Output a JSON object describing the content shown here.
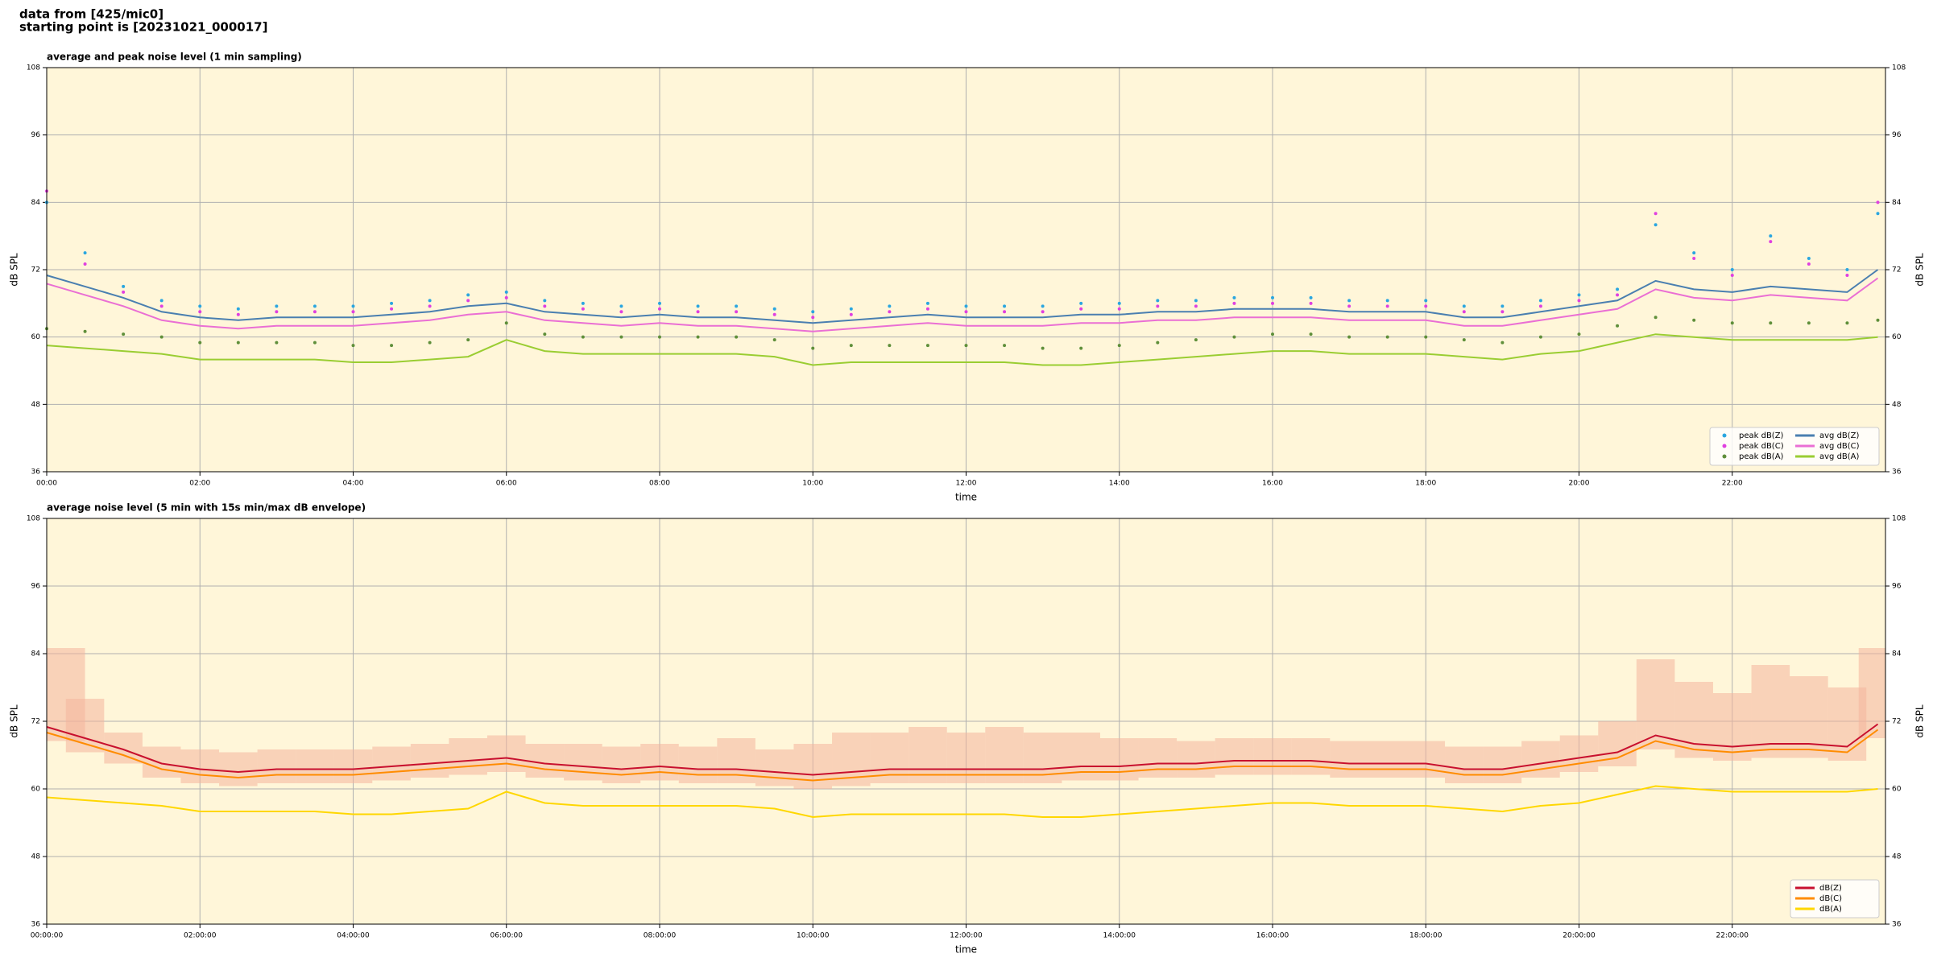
{
  "header": [
    "data from [425/mic0]",
    "starting point is [20231021_000017]"
  ],
  "chart_data": [
    {
      "type": "line",
      "title": "average and peak noise level (1 min sampling)",
      "xlabel": "time",
      "ylabel": "dB SPL",
      "background": "#fff6d9",
      "grid": true,
      "legend": "lower right",
      "legend_columns": 2,
      "xlim": [
        0,
        24
      ],
      "ylim": [
        36,
        108
      ],
      "yticks": [
        36,
        48,
        60,
        72,
        84,
        96,
        108
      ],
      "xticks": [
        {
          "value": 0,
          "label": "00:00"
        },
        {
          "value": 2,
          "label": "02:00"
        },
        {
          "value": 4,
          "label": "04:00"
        },
        {
          "value": 6,
          "label": "06:00"
        },
        {
          "value": 8,
          "label": "08:00"
        },
        {
          "value": 10,
          "label": "10:00"
        },
        {
          "value": 12,
          "label": "12:00"
        },
        {
          "value": 14,
          "label": "14:00"
        },
        {
          "value": 16,
          "label": "16:00"
        },
        {
          "value": 18,
          "label": "18:00"
        },
        {
          "value": 20,
          "label": "20:00"
        },
        {
          "value": 22,
          "label": "22:00"
        }
      ],
      "x": [
        0,
        0.5,
        1,
        1.5,
        2,
        2.5,
        3,
        3.5,
        4,
        4.5,
        5,
        5.5,
        6,
        6.5,
        7,
        7.5,
        8,
        8.5,
        9,
        9.5,
        10,
        10.5,
        11,
        11.5,
        12,
        12.5,
        13,
        13.5,
        14,
        14.5,
        15,
        15.5,
        16,
        16.5,
        17,
        17.5,
        18,
        18.5,
        19,
        19.5,
        20,
        20.5,
        21,
        21.5,
        22,
        22.5,
        23,
        23.5,
        23.9
      ],
      "series": [
        {
          "name": "peak dB(Z)",
          "color": "#2aa6e0",
          "style": "markers",
          "values": [
            84,
            75,
            69,
            66.5,
            65.5,
            65,
            65.5,
            65.5,
            65.5,
            66,
            66.5,
            67.5,
            68,
            66.5,
            66,
            65.5,
            66,
            65.5,
            65.5,
            65,
            64.5,
            65,
            65.5,
            66,
            65.5,
            65.5,
            65.5,
            66,
            66,
            66.5,
            66.5,
            67,
            67,
            67,
            66.5,
            66.5,
            66.5,
            65.5,
            65.5,
            66.5,
            67.5,
            68.5,
            80,
            75,
            72,
            78,
            74,
            72,
            82
          ]
        },
        {
          "name": "peak dB(C)",
          "color": "#e040e0",
          "style": "markers",
          "values": [
            86,
            73,
            68,
            65.5,
            64.5,
            64,
            64.5,
            64.5,
            64.5,
            65,
            65.5,
            66.5,
            67,
            65.5,
            65,
            64.5,
            65,
            64.5,
            64.5,
            64,
            63.5,
            64,
            64.5,
            65,
            64.5,
            64.5,
            64.5,
            65,
            65,
            65.5,
            65.5,
            66,
            66,
            66,
            65.5,
            65.5,
            65.5,
            64.5,
            64.5,
            65.5,
            66.5,
            67.5,
            82,
            74,
            71,
            77,
            73,
            71,
            84
          ]
        },
        {
          "name": "peak dB(A)",
          "color": "#5f8f3a",
          "style": "markers",
          "values": [
            61.5,
            61,
            60.5,
            60,
            59,
            59,
            59,
            59,
            58.5,
            58.5,
            59,
            59.5,
            62.5,
            60.5,
            60,
            60,
            60,
            60,
            60,
            59.5,
            58,
            58.5,
            58.5,
            58.5,
            58.5,
            58.5,
            58,
            58,
            58.5,
            59,
            59.5,
            60,
            60.5,
            60.5,
            60,
            60,
            60,
            59.5,
            59,
            60,
            60.5,
            62,
            63.5,
            63,
            62.5,
            62.5,
            62.5,
            62.5,
            63
          ]
        },
        {
          "name": "avg dB(Z)",
          "color": "#4a7fb0",
          "style": "line",
          "values": [
            71,
            69,
            67,
            64.5,
            63.5,
            63,
            63.5,
            63.5,
            63.5,
            64,
            64.5,
            65.5,
            66,
            64.5,
            64,
            63.5,
            64,
            63.5,
            63.5,
            63,
            62.5,
            63,
            63.5,
            64,
            63.5,
            63.5,
            63.5,
            64,
            64,
            64.5,
            64.5,
            65,
            65,
            65,
            64.5,
            64.5,
            64.5,
            63.5,
            63.5,
            64.5,
            65.5,
            66.5,
            70,
            68.5,
            68,
            69,
            68.5,
            68,
            72
          ]
        },
        {
          "name": "avg dB(C)",
          "color": "#ea6fd4",
          "style": "line",
          "values": [
            69.5,
            67.5,
            65.5,
            63,
            62,
            61.5,
            62,
            62,
            62,
            62.5,
            63,
            64,
            64.5,
            63,
            62.5,
            62,
            62.5,
            62,
            62,
            61.5,
            61,
            61.5,
            62,
            62.5,
            62,
            62,
            62,
            62.5,
            62.5,
            63,
            63,
            63.5,
            63.5,
            63.5,
            63,
            63,
            63,
            62,
            62,
            63,
            64,
            65,
            68.5,
            67,
            66.5,
            67.5,
            67,
            66.5,
            70.5
          ]
        },
        {
          "name": "avg dB(A)",
          "color": "#9acd32",
          "style": "line",
          "values": [
            58.5,
            58,
            57.5,
            57,
            56,
            56,
            56,
            56,
            55.5,
            55.5,
            56,
            56.5,
            59.5,
            57.5,
            57,
            57,
            57,
            57,
            57,
            56.5,
            55,
            55.5,
            55.5,
            55.5,
            55.5,
            55.5,
            55,
            55,
            55.5,
            56,
            56.5,
            57,
            57.5,
            57.5,
            57,
            57,
            57,
            56.5,
            56,
            57,
            57.5,
            59,
            60.5,
            60,
            59.5,
            59.5,
            59.5,
            59.5,
            60
          ]
        }
      ]
    },
    {
      "type": "line",
      "title": "average noise level (5 min with 15s min/max dB envelope)",
      "xlabel": "time",
      "ylabel": "dB SPL",
      "background": "#fff6d9",
      "grid": true,
      "legend": "lower right",
      "legend_columns": 1,
      "xlim": [
        0,
        24
      ],
      "ylim": [
        36,
        108
      ],
      "yticks": [
        36,
        48,
        60,
        72,
        84,
        96,
        108
      ],
      "xticks": [
        {
          "value": 0,
          "label": "00:00:00"
        },
        {
          "value": 2,
          "label": "02:00:00"
        },
        {
          "value": 4,
          "label": "04:00:00"
        },
        {
          "value": 6,
          "label": "06:00:00"
        },
        {
          "value": 8,
          "label": "08:00:00"
        },
        {
          "value": 10,
          "label": "10:00:00"
        },
        {
          "value": 12,
          "label": "12:00:00"
        },
        {
          "value": 14,
          "label": "14:00:00"
        },
        {
          "value": 16,
          "label": "16:00:00"
        },
        {
          "value": 18,
          "label": "18:00:00"
        },
        {
          "value": 20,
          "label": "20:00:00"
        },
        {
          "value": 22,
          "label": "22:00:00"
        }
      ],
      "x": [
        0,
        0.5,
        1,
        1.5,
        2,
        2.5,
        3,
        3.5,
        4,
        4.5,
        5,
        5.5,
        6,
        6.5,
        7,
        7.5,
        8,
        8.5,
        9,
        9.5,
        10,
        10.5,
        11,
        11.5,
        12,
        12.5,
        13,
        13.5,
        14,
        14.5,
        15,
        15.5,
        16,
        16.5,
        17,
        17.5,
        18,
        18.5,
        19,
        19.5,
        20,
        20.5,
        21,
        21.5,
        22,
        22.5,
        23,
        23.5,
        23.9
      ],
      "envelope": {
        "color": "#f4b49c",
        "min": [
          68.5,
          66.5,
          64.5,
          62,
          61,
          60.5,
          61,
          61,
          61,
          61.5,
          62,
          62.5,
          63,
          62,
          61.5,
          61,
          61.5,
          61,
          61,
          60.5,
          60,
          60.5,
          61,
          61,
          61,
          61,
          61,
          61.5,
          61.5,
          62,
          62,
          62.5,
          62.5,
          62.5,
          62,
          62,
          62,
          61,
          61,
          62,
          63,
          64,
          67,
          65.5,
          65,
          65.5,
          65.5,
          65,
          69
        ],
        "max": [
          85,
          76,
          70,
          67.5,
          67,
          66.5,
          67,
          67,
          67,
          67.5,
          68,
          69,
          69.5,
          68,
          68,
          67.5,
          68,
          67.5,
          69,
          67,
          68,
          70,
          70,
          71,
          70,
          71,
          70,
          70,
          69,
          69,
          68.5,
          69,
          69,
          69,
          68.5,
          68.5,
          68.5,
          67.5,
          67.5,
          68.5,
          69.5,
          72,
          83,
          79,
          77,
          82,
          80,
          78,
          85
        ]
      },
      "series": [
        {
          "name": "dB(Z)",
          "color": "#c8102e",
          "style": "line",
          "values": [
            71,
            69,
            67,
            64.5,
            63.5,
            63,
            63.5,
            63.5,
            63.5,
            64,
            64.5,
            65,
            65.5,
            64.5,
            64,
            63.5,
            64,
            63.5,
            63.5,
            63,
            62.5,
            63,
            63.5,
            63.5,
            63.5,
            63.5,
            63.5,
            64,
            64,
            64.5,
            64.5,
            65,
            65,
            65,
            64.5,
            64.5,
            64.5,
            63.5,
            63.5,
            64.5,
            65.5,
            66.5,
            69.5,
            68,
            67.5,
            68,
            68,
            67.5,
            71.5
          ]
        },
        {
          "name": "dB(C)",
          "color": "#ff8c00",
          "style": "line",
          "values": [
            70,
            68,
            66,
            63.5,
            62.5,
            62,
            62.5,
            62.5,
            62.5,
            63,
            63.5,
            64,
            64.5,
            63.5,
            63,
            62.5,
            63,
            62.5,
            62.5,
            62,
            61.5,
            62,
            62.5,
            62.5,
            62.5,
            62.5,
            62.5,
            63,
            63,
            63.5,
            63.5,
            64,
            64,
            64,
            63.5,
            63.5,
            63.5,
            62.5,
            62.5,
            63.5,
            64.5,
            65.5,
            68.5,
            67,
            66.5,
            67,
            67,
            66.5,
            70.5
          ]
        },
        {
          "name": "dB(A)",
          "color": "#ffd700",
          "style": "line",
          "values": [
            58.5,
            58,
            57.5,
            57,
            56,
            56,
            56,
            56,
            55.5,
            55.5,
            56,
            56.5,
            59.5,
            57.5,
            57,
            57,
            57,
            57,
            57,
            56.5,
            55,
            55.5,
            55.5,
            55.5,
            55.5,
            55.5,
            55,
            55,
            55.5,
            56,
            56.5,
            57,
            57.5,
            57.5,
            57,
            57,
            57,
            56.5,
            56,
            57,
            57.5,
            59,
            60.5,
            60,
            59.5,
            59.5,
            59.5,
            59.5,
            60
          ]
        }
      ]
    }
  ]
}
